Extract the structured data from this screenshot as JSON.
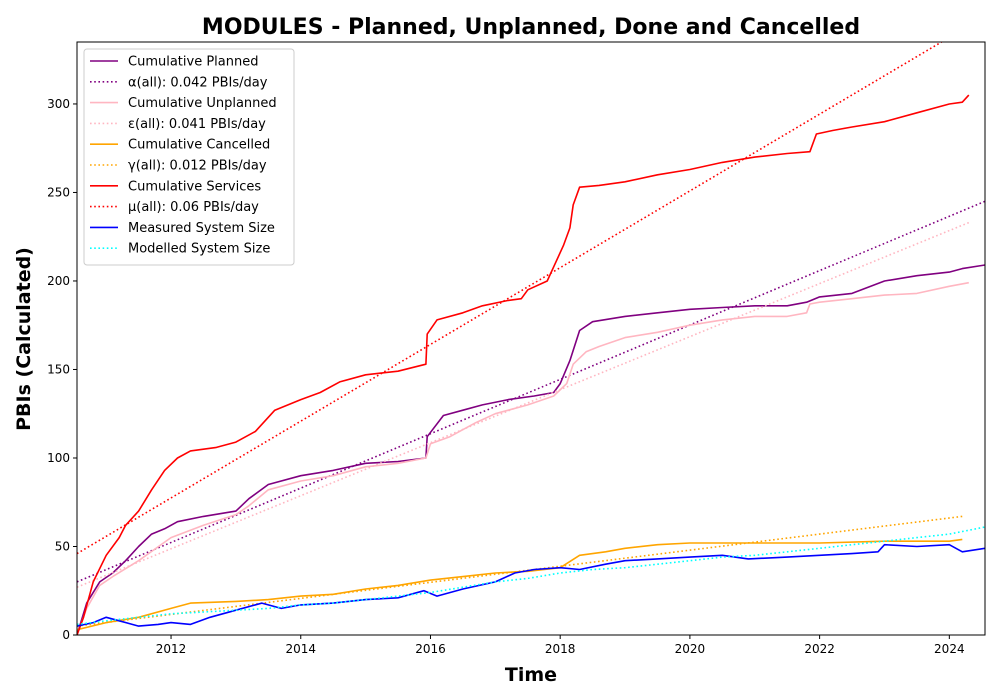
{
  "chart_data": {
    "type": "line",
    "title": "MODULES - Planned, Unplanned, Done  and Cancelled",
    "xlabel": "Time",
    "ylabel": "PBIs (Calculated)",
    "xlim": [
      2010.55,
      2024.55
    ],
    "ylim": [
      0,
      335
    ],
    "xticks": [
      2012,
      2014,
      2016,
      2018,
      2020,
      2022,
      2024
    ],
    "yticks": [
      0,
      50,
      100,
      150,
      200,
      250,
      300
    ],
    "grid": false,
    "legend_position": "top-left",
    "series": [
      {
        "name": "Cumulative Planned",
        "color": "#800080",
        "style": "solid",
        "points": [
          [
            2010.55,
            0
          ],
          [
            2010.7,
            18
          ],
          [
            2010.9,
            30
          ],
          [
            2011.1,
            35
          ],
          [
            2011.3,
            42
          ],
          [
            2011.5,
            50
          ],
          [
            2011.7,
            57
          ],
          [
            2011.9,
            60
          ],
          [
            2012.1,
            64
          ],
          [
            2012.5,
            67
          ],
          [
            2013.0,
            70
          ],
          [
            2013.2,
            77
          ],
          [
            2013.5,
            85
          ],
          [
            2014.0,
            90
          ],
          [
            2014.5,
            93
          ],
          [
            2015.0,
            97
          ],
          [
            2015.5,
            98
          ],
          [
            2015.93,
            100
          ],
          [
            2015.95,
            112
          ],
          [
            2016.2,
            124
          ],
          [
            2016.5,
            127
          ],
          [
            2016.8,
            130
          ],
          [
            2017.2,
            133
          ],
          [
            2017.6,
            135
          ],
          [
            2017.9,
            137
          ],
          [
            2018.0,
            142
          ],
          [
            2018.15,
            155
          ],
          [
            2018.3,
            172
          ],
          [
            2018.5,
            177
          ],
          [
            2019.0,
            180
          ],
          [
            2019.5,
            182
          ],
          [
            2020.0,
            184
          ],
          [
            2020.5,
            185
          ],
          [
            2021.0,
            186
          ],
          [
            2021.5,
            186
          ],
          [
            2021.8,
            188
          ],
          [
            2022.0,
            191
          ],
          [
            2022.5,
            193
          ],
          [
            2023.0,
            200
          ],
          [
            2023.5,
            203
          ],
          [
            2024.0,
            205
          ],
          [
            2024.2,
            207
          ],
          [
            2024.55,
            209
          ]
        ]
      },
      {
        "name": "α(all): 0.042 PBIs/day",
        "color": "#800080",
        "style": "dotted",
        "points": [
          [
            2010.55,
            30
          ],
          [
            2024.55,
            245
          ]
        ]
      },
      {
        "name": "Cumulative Unplanned",
        "color": "#ffb6c1",
        "style": "solid",
        "points": [
          [
            2010.55,
            0
          ],
          [
            2010.7,
            15
          ],
          [
            2010.9,
            28
          ],
          [
            2011.1,
            33
          ],
          [
            2011.5,
            42
          ],
          [
            2012.0,
            55
          ],
          [
            2012.5,
            62
          ],
          [
            2013.0,
            68
          ],
          [
            2013.2,
            73
          ],
          [
            2013.5,
            82
          ],
          [
            2014.0,
            87
          ],
          [
            2014.5,
            90
          ],
          [
            2015.0,
            95
          ],
          [
            2015.5,
            97
          ],
          [
            2015.93,
            100
          ],
          [
            2016.0,
            108
          ],
          [
            2016.3,
            112
          ],
          [
            2016.7,
            120
          ],
          [
            2017.0,
            125
          ],
          [
            2017.5,
            130
          ],
          [
            2017.9,
            135
          ],
          [
            2018.1,
            142
          ],
          [
            2018.2,
            153
          ],
          [
            2018.4,
            160
          ],
          [
            2018.6,
            163
          ],
          [
            2019.0,
            168
          ],
          [
            2019.5,
            171
          ],
          [
            2020.0,
            175
          ],
          [
            2020.5,
            178
          ],
          [
            2021.0,
            180
          ],
          [
            2021.5,
            180
          ],
          [
            2021.8,
            182
          ],
          [
            2021.85,
            187
          ],
          [
            2022.0,
            188
          ],
          [
            2022.5,
            190
          ],
          [
            2023.0,
            192
          ],
          [
            2023.5,
            193
          ],
          [
            2024.0,
            197
          ],
          [
            2024.3,
            199
          ]
        ]
      },
      {
        "name": "ε(all): 0.041 PBIs/day",
        "color": "#ffb6c1",
        "style": "dotted",
        "points": [
          [
            2010.55,
            27
          ],
          [
            2024.3,
            233
          ]
        ]
      },
      {
        "name": "Cumulative Cancelled",
        "color": "#ffa500",
        "style": "solid",
        "points": [
          [
            2010.55,
            3
          ],
          [
            2011.0,
            7
          ],
          [
            2011.5,
            10
          ],
          [
            2012.0,
            15
          ],
          [
            2012.3,
            18
          ],
          [
            2013.0,
            19
          ],
          [
            2013.5,
            20
          ],
          [
            2014.0,
            22
          ],
          [
            2014.5,
            23
          ],
          [
            2015.0,
            26
          ],
          [
            2015.5,
            28
          ],
          [
            2016.0,
            31
          ],
          [
            2016.5,
            33
          ],
          [
            2017.0,
            35
          ],
          [
            2017.5,
            36
          ],
          [
            2018.0,
            38
          ],
          [
            2018.3,
            45
          ],
          [
            2018.7,
            47
          ],
          [
            2019.0,
            49
          ],
          [
            2019.5,
            51
          ],
          [
            2020.0,
            52
          ],
          [
            2021.0,
            52
          ],
          [
            2022.0,
            52
          ],
          [
            2023.0,
            53
          ],
          [
            2024.0,
            53
          ],
          [
            2024.2,
            54
          ]
        ]
      },
      {
        "name": "γ(all): 0.012 PBIs/day",
        "color": "#ffa500",
        "style": "dotted",
        "points": [
          [
            2010.55,
            5
          ],
          [
            2024.2,
            67
          ]
        ]
      },
      {
        "name": "Cumulative Services",
        "color": "#ff0000",
        "style": "solid",
        "points": [
          [
            2010.55,
            0
          ],
          [
            2010.65,
            10
          ],
          [
            2010.8,
            30
          ],
          [
            2011.0,
            45
          ],
          [
            2011.2,
            55
          ],
          [
            2011.3,
            62
          ],
          [
            2011.5,
            70
          ],
          [
            2011.7,
            82
          ],
          [
            2011.9,
            93
          ],
          [
            2012.1,
            100
          ],
          [
            2012.3,
            104
          ],
          [
            2012.7,
            106
          ],
          [
            2013.0,
            109
          ],
          [
            2013.3,
            115
          ],
          [
            2013.6,
            127
          ],
          [
            2014.0,
            133
          ],
          [
            2014.3,
            137
          ],
          [
            2014.6,
            143
          ],
          [
            2015.0,
            147
          ],
          [
            2015.5,
            149
          ],
          [
            2015.93,
            153
          ],
          [
            2015.95,
            170
          ],
          [
            2016.1,
            178
          ],
          [
            2016.5,
            182
          ],
          [
            2016.8,
            186
          ],
          [
            2017.2,
            189
          ],
          [
            2017.4,
            190
          ],
          [
            2017.5,
            195
          ],
          [
            2017.8,
            200
          ],
          [
            2017.9,
            208
          ],
          [
            2018.0,
            216
          ],
          [
            2018.05,
            220
          ],
          [
            2018.15,
            230
          ],
          [
            2018.2,
            243
          ],
          [
            2018.3,
            253
          ],
          [
            2018.6,
            254
          ],
          [
            2019.0,
            256
          ],
          [
            2019.5,
            260
          ],
          [
            2020.0,
            263
          ],
          [
            2020.5,
            267
          ],
          [
            2021.0,
            270
          ],
          [
            2021.5,
            272
          ],
          [
            2021.85,
            273
          ],
          [
            2021.95,
            283
          ],
          [
            2022.2,
            285
          ],
          [
            2022.5,
            287
          ],
          [
            2023.0,
            290
          ],
          [
            2023.5,
            295
          ],
          [
            2024.0,
            300
          ],
          [
            2024.2,
            301
          ],
          [
            2024.3,
            305
          ]
        ]
      },
      {
        "name": "μ(all): 0.06 PBIs/day",
        "color": "#ff0000",
        "style": "dotted",
        "points": [
          [
            2010.55,
            46
          ],
          [
            2023.88,
            335
          ]
        ]
      },
      {
        "name": "Measured System Size",
        "color": "#0000ff",
        "style": "solid",
        "points": [
          [
            2010.55,
            5
          ],
          [
            2010.8,
            7
          ],
          [
            2011.0,
            10
          ],
          [
            2011.2,
            8
          ],
          [
            2011.5,
            5
          ],
          [
            2011.8,
            6
          ],
          [
            2012.0,
            7
          ],
          [
            2012.3,
            6
          ],
          [
            2012.6,
            10
          ],
          [
            2013.0,
            14
          ],
          [
            2013.4,
            18
          ],
          [
            2013.7,
            15
          ],
          [
            2014.0,
            17
          ],
          [
            2014.5,
            18
          ],
          [
            2015.0,
            20
          ],
          [
            2015.5,
            21
          ],
          [
            2015.9,
            25
          ],
          [
            2016.1,
            22
          ],
          [
            2016.5,
            26
          ],
          [
            2017.0,
            30
          ],
          [
            2017.3,
            35
          ],
          [
            2017.6,
            37
          ],
          [
            2018.0,
            38
          ],
          [
            2018.3,
            37
          ],
          [
            2018.7,
            40
          ],
          [
            2019.0,
            42
          ],
          [
            2019.5,
            43
          ],
          [
            2020.0,
            44
          ],
          [
            2020.5,
            45
          ],
          [
            2020.9,
            43
          ],
          [
            2021.5,
            44
          ],
          [
            2022.0,
            45
          ],
          [
            2022.5,
            46
          ],
          [
            2022.9,
            47
          ],
          [
            2023.0,
            51
          ],
          [
            2023.5,
            50
          ],
          [
            2024.0,
            51
          ],
          [
            2024.2,
            47
          ],
          [
            2024.55,
            49
          ]
        ]
      },
      {
        "name": "Modelled System Size",
        "color": "#00ffff",
        "style": "dotted",
        "points": [
          [
            2010.55,
            6
          ],
          [
            2011.0,
            8
          ],
          [
            2011.5,
            10
          ],
          [
            2012.0,
            12
          ],
          [
            2012.5,
            13
          ],
          [
            2013.0,
            14
          ],
          [
            2013.5,
            15
          ],
          [
            2014.0,
            17
          ],
          [
            2014.5,
            18
          ],
          [
            2015.0,
            20
          ],
          [
            2015.5,
            22
          ],
          [
            2016.0,
            24
          ],
          [
            2016.5,
            27
          ],
          [
            2017.0,
            30
          ],
          [
            2017.5,
            32
          ],
          [
            2018.0,
            35
          ],
          [
            2018.5,
            37
          ],
          [
            2019.0,
            38
          ],
          [
            2019.5,
            40
          ],
          [
            2020.0,
            42
          ],
          [
            2020.5,
            44
          ],
          [
            2021.0,
            45
          ],
          [
            2021.5,
            47
          ],
          [
            2022.0,
            49
          ],
          [
            2022.5,
            51
          ],
          [
            2023.0,
            53
          ],
          [
            2023.5,
            55
          ],
          [
            2024.0,
            57
          ],
          [
            2024.55,
            61
          ]
        ]
      }
    ]
  }
}
